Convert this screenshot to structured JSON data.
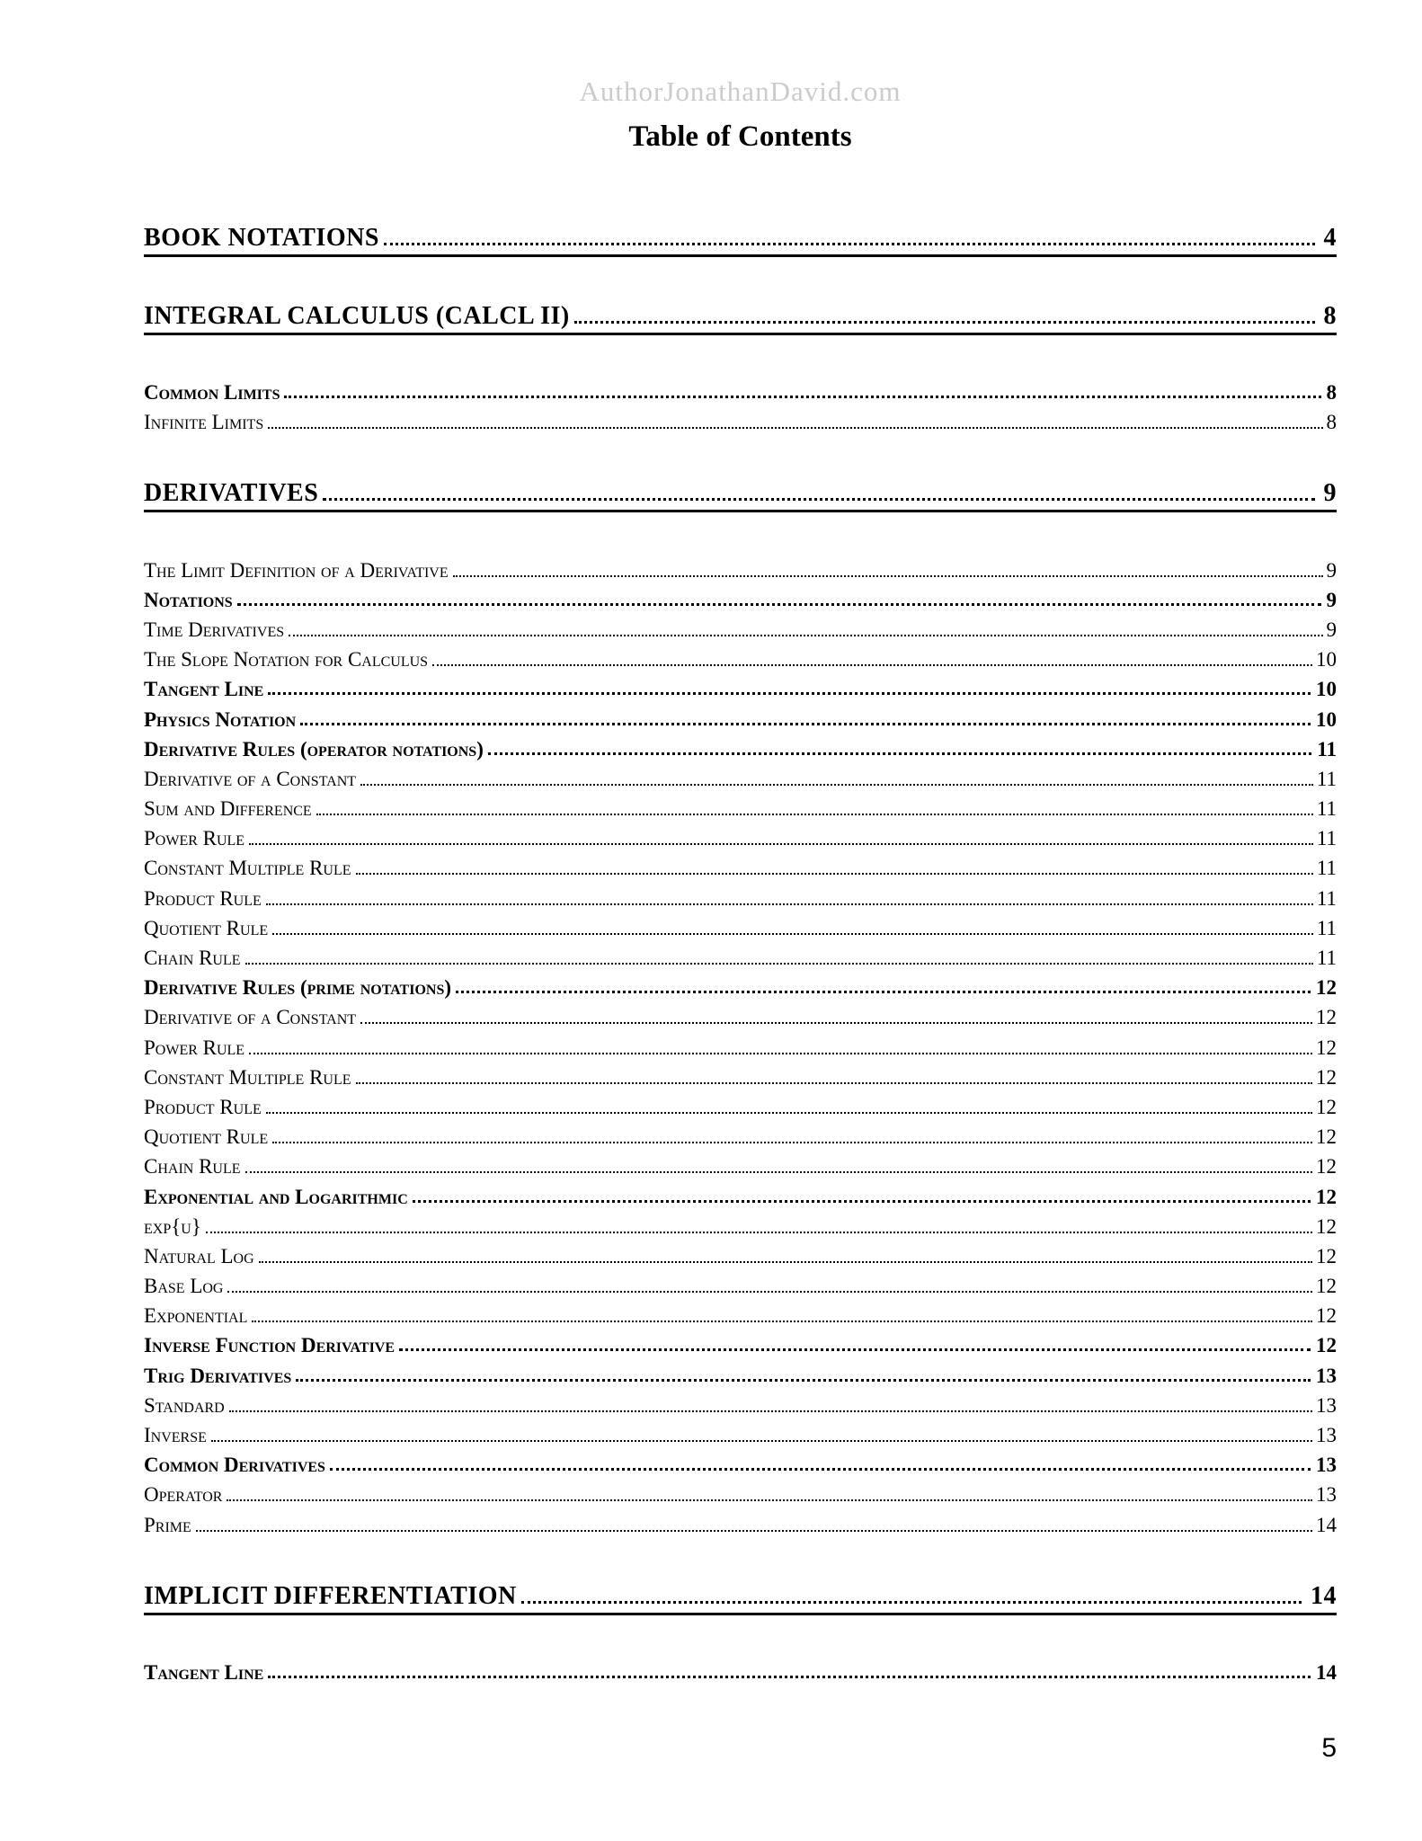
{
  "page": {
    "watermark": "AuthorJonathanDavid.com",
    "title": "Table of Contents",
    "page_number": "5"
  },
  "colors": {
    "text": "#000000",
    "watermark": "#cbcbcb",
    "background": "#ffffff"
  },
  "toc": {
    "entries": [
      {
        "level": 1,
        "label": "BOOK NOTATIONS",
        "page": "4"
      },
      {
        "level": 1,
        "label": "INTEGRAL CALCULUS (CALCL II)",
        "page": "8"
      },
      {
        "level": 2,
        "label": "Common Limits",
        "page": "8"
      },
      {
        "level": 3,
        "label": "Infinite Limits",
        "page": "8"
      },
      {
        "level": 1,
        "label": "DERIVATIVES",
        "page": "9"
      },
      {
        "level": 3,
        "label": "The Limit Definition of a Derivative",
        "page": "9"
      },
      {
        "level": 2,
        "label": "Notations",
        "page": "9"
      },
      {
        "level": 3,
        "label": "Time Derivatives",
        "page": "9"
      },
      {
        "level": 3,
        "label": "The Slope Notation for Calculus",
        "page": "10"
      },
      {
        "level": 2,
        "label": "Tangent Line",
        "page": "10"
      },
      {
        "level": 2,
        "label": "Physics Notation",
        "page": "10"
      },
      {
        "level": 2,
        "label": "Derivative Rules (operator notations)",
        "page": "11"
      },
      {
        "level": 3,
        "label": "Derivative of a Constant",
        "page": "11"
      },
      {
        "level": 3,
        "label": "Sum and Difference",
        "page": "11"
      },
      {
        "level": 3,
        "label": "Power Rule",
        "page": "11"
      },
      {
        "level": 3,
        "label": "Constant Multiple Rule",
        "page": "11"
      },
      {
        "level": 3,
        "label": "Product Rule",
        "page": "11"
      },
      {
        "level": 3,
        "label": "Quotient Rule",
        "page": "11"
      },
      {
        "level": 3,
        "label": "Chain Rule",
        "page": "11"
      },
      {
        "level": 2,
        "label": "Derivative Rules (prime notations)",
        "page": "12"
      },
      {
        "level": 3,
        "label": "Derivative of a Constant",
        "page": "12"
      },
      {
        "level": 3,
        "label": "Power Rule",
        "page": "12"
      },
      {
        "level": 3,
        "label": "Constant Multiple Rule",
        "page": "12"
      },
      {
        "level": 3,
        "label": "Product Rule",
        "page": "12"
      },
      {
        "level": 3,
        "label": "Quotient Rule",
        "page": "12"
      },
      {
        "level": 3,
        "label": "Chain Rule",
        "page": "12"
      },
      {
        "level": 2,
        "label": "Exponential and Logarithmic",
        "page": "12"
      },
      {
        "level": 3,
        "label": "exp{u}",
        "page": "12"
      },
      {
        "level": 3,
        "label": "Natural Log",
        "page": "12"
      },
      {
        "level": 3,
        "label": "Base Log",
        "page": "12"
      },
      {
        "level": 3,
        "label": "Exponential",
        "page": "12"
      },
      {
        "level": 2,
        "label": "Inverse Function Derivative",
        "page": "12"
      },
      {
        "level": 2,
        "label": "Trig Derivatives",
        "page": "13"
      },
      {
        "level": 3,
        "label": "Standard",
        "page": "13"
      },
      {
        "level": 3,
        "label": "Inverse",
        "page": "13"
      },
      {
        "level": 2,
        "label": "Common Derivatives",
        "page": "13"
      },
      {
        "level": 3,
        "label": "Operator",
        "page": "13"
      },
      {
        "level": 3,
        "label": "Prime",
        "page": "14"
      },
      {
        "level": 1,
        "label": "IMPLICIT DIFFERENTIATION",
        "page": "14"
      },
      {
        "level": 2,
        "label": "Tangent Line",
        "page": "14"
      }
    ]
  }
}
